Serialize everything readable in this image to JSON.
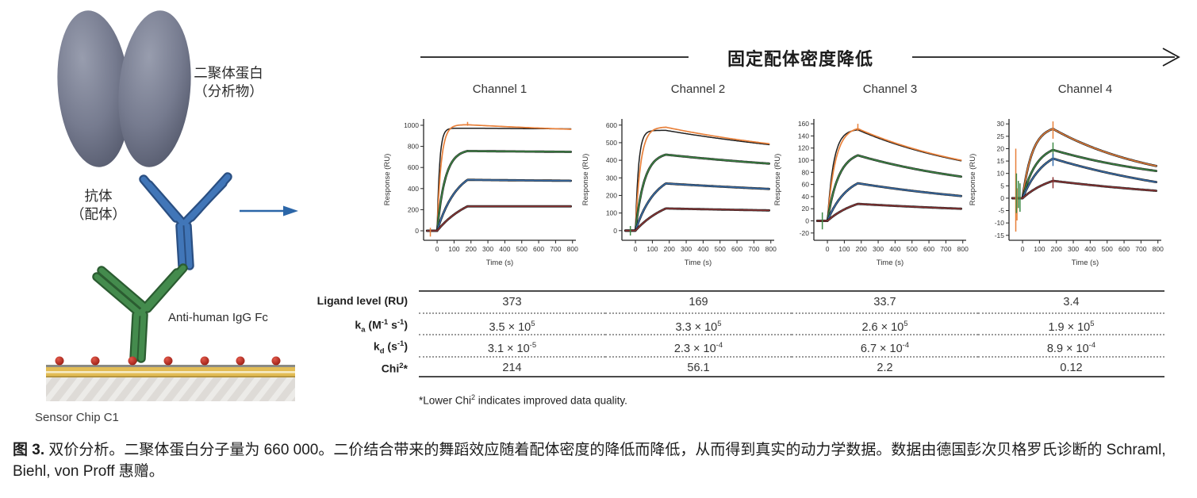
{
  "flow": {
    "density_label": "固定配体密度降低"
  },
  "illustration": {
    "dimer_label_line1": "二聚体蛋白",
    "dimer_label_line2": "（分析物）",
    "antibody_label_line1": "抗体",
    "antibody_label_line2": "（配体）",
    "anti_igg_label": "Anti-human IgG Fc",
    "chip_label": "Sensor Chip C1"
  },
  "timing": {
    "baseline_start": -60,
    "inject_start": 0,
    "inject_end": 180,
    "curve_end": 790
  },
  "chart_data": [
    {
      "type": "line",
      "title": "Channel 1",
      "xlabel": "Time (s)",
      "ylabel": "Response (RU)",
      "xlim": [
        -80,
        820
      ],
      "ylim": [
        -90,
        1060
      ],
      "xticks": [
        0,
        100,
        200,
        300,
        400,
        500,
        600,
        700,
        800
      ],
      "yticks": [
        0,
        200,
        400,
        600,
        800,
        1000
      ],
      "fit_color": "#1f1f1f",
      "series": [
        {
          "name": "conc-1-highest",
          "color": "#e8803a",
          "peak": 1005,
          "end": 962,
          "k_rise": 0.042,
          "d_decay": 0.0006,
          "fit": {
            "peak": 972,
            "end": 966,
            "k_rise": 0.07,
            "d_decay": 0.0002
          }
        },
        {
          "name": "conc-2",
          "color": "#3e8a46",
          "peak": 756,
          "end": 748,
          "k_rise": 0.021,
          "d_decay": 0.0002
        },
        {
          "name": "conc-3",
          "color": "#3a70ae",
          "peak": 483,
          "end": 474,
          "k_rise": 0.0085,
          "d_decay": 0.0002
        },
        {
          "name": "conc-4-lowest",
          "color": "#8e3434",
          "peak": 232,
          "end": 232,
          "k_rise": 0.005,
          "d_decay": 0.0001
        }
      ],
      "spikes": [
        {
          "x": -40,
          "y1": -55,
          "y2": 28,
          "color": "#e8803a"
        },
        {
          "x": 180,
          "y1": 995,
          "y2": 1032,
          "color": "#e8803a"
        }
      ]
    },
    {
      "type": "line",
      "title": "Channel 2",
      "xlabel": "Time (s)",
      "ylabel": "Response (RU)",
      "xlim": [
        -80,
        820
      ],
      "ylim": [
        -55,
        635
      ],
      "xticks": [
        0,
        100,
        200,
        300,
        400,
        500,
        600,
        700,
        800
      ],
      "yticks": [
        0,
        100,
        200,
        300,
        400,
        500,
        600
      ],
      "fit_color": "#1f1f1f",
      "series": [
        {
          "name": "conc-1-highest",
          "color": "#e8803a",
          "peak": 588,
          "end": 494,
          "k_rise": 0.033,
          "d_decay": 0.0009,
          "fit": {
            "peak": 570,
            "end": 489,
            "k_rise": 0.055,
            "d_decay": 0.0007
          }
        },
        {
          "name": "conc-2",
          "color": "#3e8a46",
          "peak": 432,
          "end": 381,
          "k_rise": 0.019,
          "d_decay": 0.0007
        },
        {
          "name": "conc-3",
          "color": "#3a70ae",
          "peak": 268,
          "end": 237,
          "k_rise": 0.0085,
          "d_decay": 0.0005
        },
        {
          "name": "conc-4-lowest",
          "color": "#8e3434",
          "peak": 126,
          "end": 115,
          "k_rise": 0.005,
          "d_decay": 0.0004
        }
      ],
      "spikes": [
        {
          "x": -30,
          "y1": -28,
          "y2": 26,
          "color": "#3e8a46"
        }
      ]
    },
    {
      "type": "line",
      "title": "Channel 3",
      "xlabel": "Time (s)",
      "ylabel": "Response (RU)",
      "xlim": [
        -80,
        820
      ],
      "ylim": [
        -32,
        168
      ],
      "xticks": [
        0,
        100,
        200,
        300,
        400,
        500,
        600,
        700,
        800
      ],
      "yticks": [
        -20,
        0,
        20,
        40,
        60,
        80,
        100,
        120,
        140,
        160
      ],
      "fit_color": "#1f1f1f",
      "series": [
        {
          "name": "conc-1-highest",
          "color": "#e8803a",
          "peak": 152,
          "end": 100,
          "k_rise": 0.021,
          "d_decay": 0.0013,
          "fit": {
            "peak": 150,
            "end": 99,
            "k_rise": 0.027,
            "d_decay": 0.0013
          }
        },
        {
          "name": "conc-2",
          "color": "#3e8a46",
          "peak": 108,
          "end": 73,
          "k_rise": 0.015,
          "d_decay": 0.0012
        },
        {
          "name": "conc-3",
          "color": "#3a70ae",
          "peak": 62,
          "end": 41,
          "k_rise": 0.0085,
          "d_decay": 0.0009
        },
        {
          "name": "conc-4-lowest",
          "color": "#8e3434",
          "peak": 28,
          "end": 20,
          "k_rise": 0.0055,
          "d_decay": 0.0007
        }
      ],
      "spikes": [
        {
          "x": -30,
          "y1": -14,
          "y2": 14,
          "color": "#3e8a46"
        },
        {
          "x": 180,
          "y1": 148,
          "y2": 160,
          "color": "#e8803a"
        }
      ]
    },
    {
      "type": "line",
      "title": "Channel 4",
      "xlabel": "Time (s)",
      "ylabel": "Response (RU)",
      "xlim": [
        -80,
        820
      ],
      "ylim": [
        -17,
        32
      ],
      "xticks": [
        0,
        100,
        200,
        300,
        400,
        500,
        600,
        700,
        800
      ],
      "yticks": [
        -15,
        -10,
        -5,
        0,
        5,
        10,
        15,
        20,
        25,
        30
      ],
      "fit_color": "#1f1f1f",
      "series": [
        {
          "name": "conc-1-highest",
          "color": "#e8803a",
          "peak": 28,
          "end": 13,
          "k_rise": 0.017,
          "d_decay": 0.0016
        },
        {
          "name": "conc-2",
          "color": "#3e8a46",
          "peak": 19.5,
          "end": 11,
          "k_rise": 0.012,
          "d_decay": 0.0013
        },
        {
          "name": "conc-3",
          "color": "#3a70ae",
          "peak": 16,
          "end": 6.5,
          "k_rise": 0.008,
          "d_decay": 0.001
        },
        {
          "name": "conc-4-lowest",
          "color": "#8e3434",
          "peak": 7,
          "end": 3,
          "k_rise": 0.0055,
          "d_decay": 0.0008
        }
      ],
      "spikes": [
        {
          "x": -40,
          "y1": -13.5,
          "y2": 20,
          "color": "#e8803a"
        },
        {
          "x": -33,
          "y1": -9,
          "y2": 4,
          "color": "#e8803a"
        },
        {
          "x": -36,
          "y1": -6,
          "y2": 10,
          "color": "#3e8a46"
        },
        {
          "x": -25,
          "y1": -4,
          "y2": 7,
          "color": "#3e8a46"
        },
        {
          "x": -15,
          "y1": -5.5,
          "y2": 6,
          "color": "#3e8a46"
        },
        {
          "x": 180,
          "y1": 24,
          "y2": 31,
          "color": "#e8803a"
        },
        {
          "x": 180,
          "y1": 16,
          "y2": 22.5,
          "color": "#3e8a46"
        },
        {
          "x": 180,
          "y1": 13,
          "y2": 18,
          "color": "#3a70ae"
        },
        {
          "x": 180,
          "y1": 4,
          "y2": 8.5,
          "color": "#8e3434"
        }
      ]
    }
  ],
  "table": {
    "rows": [
      {
        "label_html": "Ligand level (RU)",
        "values_html": [
          "373",
          "169",
          "33.7",
          "3.4"
        ]
      },
      {
        "label_html": "k<sub>a</sub> (M<sup>-1</sup> s<sup>-1</sup>)",
        "values_html": [
          "3.5 × 10<sup>5</sup>",
          "3.3 × 10<sup>5</sup>",
          "2.6 × 10<sup>5</sup>",
          "1.9 × 10<sup>5</sup>"
        ]
      },
      {
        "label_html": "k<sub>d</sub> (s<sup>-1</sup>)",
        "values_html": [
          "3.1 × 10<sup>-5</sup>",
          "2.3 × 10<sup>-4</sup>",
          "6.7 × 10<sup>-4</sup>",
          "8.9 × 10<sup>-4</sup>"
        ]
      },
      {
        "label_html": "Chi<sup>2</sup>*",
        "values_html": [
          "214",
          "56.1",
          "2.2",
          "0.12"
        ]
      }
    ]
  },
  "footnote_html": "*Lower Chi<sup>2</sup> indicates improved data quality.",
  "caption_html": "<b>图 3.</b> 双价分析。二聚体蛋白分子量为 660 000。二价结合带来的舞蹈效应随着配体密度的降低而降低，从而得到真实的动力学数据。数据由德国彭次贝格罗氏诊断的 Schraml, Biehl, von Proff 惠赠。"
}
